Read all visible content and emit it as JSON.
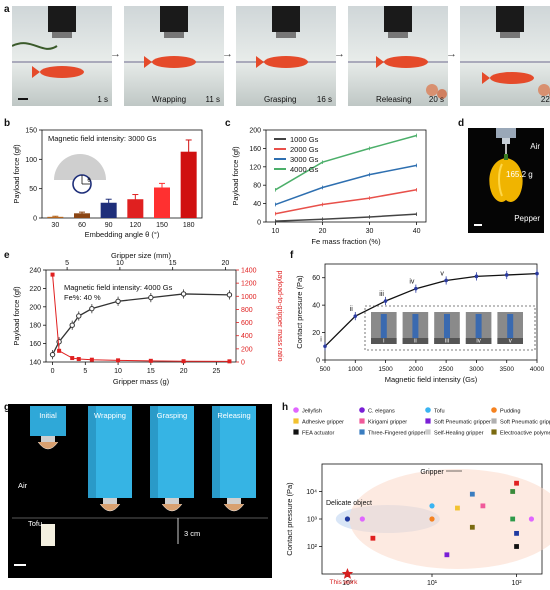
{
  "panels": {
    "a": "a",
    "b": "b",
    "c": "c",
    "d": "d",
    "e": "e",
    "f": "f",
    "g": "g",
    "h": "h"
  },
  "panel_a": {
    "frames": [
      {
        "time": "1 s",
        "label": ""
      },
      {
        "time": "11 s",
        "label": "Wrapping"
      },
      {
        "time": "16 s",
        "label": "Grasping"
      },
      {
        "time": "20 s",
        "label": "Releasing"
      },
      {
        "time": "22 s",
        "label": ""
      }
    ],
    "arrow": "→"
  },
  "panel_d": {
    "air": "Air",
    "mass": "165.2 g",
    "object": "Pepper"
  },
  "panel_g": {
    "labels": [
      "Initial",
      "Wrapping",
      "Grasping",
      "Releasing"
    ],
    "air": "Air",
    "tofu": "Tofu",
    "scale": "3 cm"
  },
  "chart_data": [
    {
      "panel": "b",
      "type": "bar",
      "annotation": "Magnetic field intensity: 3000 Gs",
      "theta_symbol": "θ",
      "xlabel": "Embedding angle θ (°)",
      "ylabel": "Payload force (gf)",
      "categories": [
        "30",
        "60",
        "90",
        "120",
        "150",
        "180"
      ],
      "values": [
        2,
        8,
        26,
        32,
        52,
        113
      ],
      "errors": [
        1,
        2,
        6,
        8,
        7,
        20
      ],
      "colors": [
        "#b5651d",
        "#8b4513",
        "#1f2f7a",
        "#e02020",
        "#ff3030",
        "#d01010"
      ],
      "ylim": [
        0,
        150
      ],
      "yticks": [
        0,
        50,
        100,
        150
      ]
    },
    {
      "panel": "c",
      "type": "line",
      "xlabel": "Fe mass fraction (%)",
      "ylabel": "Payload force (gf)",
      "x": [
        10,
        20,
        30,
        40
      ],
      "series": [
        {
          "name": "1000 Gs",
          "color": "#444444",
          "values": [
            2,
            6,
            11,
            17
          ]
        },
        {
          "name": "2000 Gs",
          "color": "#e8504a",
          "values": [
            18,
            38,
            52,
            70
          ]
        },
        {
          "name": "3000 Gs",
          "color": "#2e6fb0",
          "values": [
            38,
            75,
            103,
            123
          ]
        },
        {
          "name": "4000 Gs",
          "color": "#4caf6a",
          "values": [
            70,
            130,
            160,
            188
          ]
        }
      ],
      "xlim": [
        8,
        42
      ],
      "ylim": [
        0,
        200
      ],
      "xticks": [
        10,
        20,
        30,
        40
      ],
      "yticks": [
        0,
        40,
        80,
        120,
        160,
        200
      ]
    },
    {
      "panel": "e",
      "type": "line",
      "annotation_1": "Magnetic field intensity: 4000 Gs",
      "annotation_2": "Fe%: 40 %",
      "xlabel": "Gripper mass (g)",
      "x2label": "Gripper size (mm)",
      "ylabel": "Payload force (gf)",
      "y2label": "payload-to-gripper mass ratio",
      "x": [
        0,
        1,
        3,
        4,
        6,
        10,
        15,
        20,
        27
      ],
      "series": [
        {
          "name": "Payload force",
          "color": "#333333",
          "values": [
            148,
            162,
            180,
            190,
            198,
            206,
            210,
            214,
            213
          ]
        },
        {
          "name": "payload-to-gripper mass ratio",
          "color": "#e02020",
          "values": [
            1330,
            170,
            60,
            45,
            35,
            25,
            18,
            12,
            10
          ]
        }
      ],
      "xlim": [
        -1,
        28
      ],
      "xticks": [
        0,
        5,
        10,
        15,
        20,
        25
      ],
      "x2ticks": [
        5,
        10,
        15,
        20
      ],
      "ylim": [
        140,
        240
      ],
      "yticks": [
        140,
        160,
        180,
        200,
        220,
        240
      ],
      "y2lim": [
        0,
        1400
      ],
      "y2ticks": [
        0,
        200,
        400,
        600,
        800,
        1000,
        1200,
        1400
      ]
    },
    {
      "panel": "f",
      "type": "line",
      "xlabel": "Magnetic field intensity (Gs)",
      "ylabel": "Contact pressure (Pa)",
      "x": [
        500,
        1000,
        1500,
        2000,
        2500,
        3000,
        3500,
        4000
      ],
      "values": [
        10,
        32,
        43,
        52,
        58,
        61,
        62,
        63
      ],
      "roman": [
        "i",
        "ii",
        "iii",
        "iv",
        "v"
      ],
      "roman_x": [
        500,
        1000,
        1500,
        2000,
        2500
      ],
      "xlim": [
        500,
        4000
      ],
      "ylim": [
        0,
        70
      ],
      "xticks": [
        500,
        1000,
        1500,
        2000,
        2500,
        3000,
        3500,
        4000
      ],
      "yticks": [
        0,
        20,
        40,
        60
      ]
    },
    {
      "panel": "h",
      "type": "scatter",
      "xlabel": "Gripper size (mm)",
      "ylabel": "Contact pressure (Pa)",
      "legend": [
        {
          "name": "Jellyfish",
          "color": "#e066ff",
          "shape": "circle"
        },
        {
          "name": "C. elegans",
          "color": "#7a1fd6",
          "shape": "circle"
        },
        {
          "name": "Tofu",
          "color": "#3ab4f2",
          "shape": "circle"
        },
        {
          "name": "Pudding",
          "color": "#f58220",
          "shape": "circle"
        },
        {
          "name": "Adhesive gripper",
          "color": "#f2c230",
          "shape": "square"
        },
        {
          "name": "Kirigami gripper",
          "color": "#f05a9a",
          "shape": "square"
        },
        {
          "name": "Soft Pneumatic gripper 1",
          "color": "#7a1fd6",
          "shape": "square"
        },
        {
          "name": "Soft Pneumatic gripper 2",
          "color": "#b0b0b0",
          "shape": "square"
        },
        {
          "name": "FEA actuator",
          "color": "#111111",
          "shape": "square"
        },
        {
          "name": "Three-Fingered gripper",
          "color": "#3a7dc0",
          "shape": "square"
        },
        {
          "name": "Self-Healing gripper",
          "color": "#cccccc",
          "shape": "square"
        },
        {
          "name": "Electroactive polymer actuator",
          "color": "#7a6a10",
          "shape": "square"
        }
      ],
      "points": [
        {
          "x": 1.0,
          "y": 1000,
          "color": "#1f3aa0",
          "shape": "circle"
        },
        {
          "x": 1.0,
          "y": 10,
          "color": "#d61f1f",
          "shape": "star"
        },
        {
          "x": 1.5,
          "y": 1000,
          "color": "#e066ff",
          "shape": "circle"
        },
        {
          "x": 2,
          "y": 200,
          "color": "#e02020",
          "shape": "square"
        },
        {
          "x": 10,
          "y": 3000,
          "color": "#3ab4f2",
          "shape": "circle"
        },
        {
          "x": 10,
          "y": 1000,
          "color": "#f58220",
          "shape": "circle"
        },
        {
          "x": 20,
          "y": 2500,
          "color": "#f2c230",
          "shape": "square"
        },
        {
          "x": 30,
          "y": 8000,
          "color": "#3a7dc0",
          "shape": "square"
        },
        {
          "x": 30,
          "y": 500,
          "color": "#7a6a10",
          "shape": "square"
        },
        {
          "x": 15,
          "y": 50,
          "color": "#7a1fd6",
          "shape": "square"
        },
        {
          "x": 40,
          "y": 3000,
          "color": "#f05a9a",
          "shape": "square"
        },
        {
          "x": 90,
          "y": 10000,
          "color": "#3a8a3a",
          "shape": "square"
        },
        {
          "x": 90,
          "y": 1000,
          "color": "#2e9a4a",
          "shape": "square"
        },
        {
          "x": 100,
          "y": 300,
          "color": "#1f3aa0",
          "shape": "square"
        },
        {
          "x": 100,
          "y": 100,
          "color": "#111111",
          "shape": "square"
        },
        {
          "x": 100,
          "y": 20000,
          "color": "#e02020",
          "shape": "square"
        },
        {
          "x": 150,
          "y": 1000,
          "color": "#e066ff",
          "shape": "circle"
        }
      ],
      "annotations": {
        "gripper": "Gripper",
        "delicate": "Delicate object",
        "thiswork": "This work"
      },
      "xlim_log": [
        0.5,
        200
      ],
      "ylim_log": [
        10,
        100000
      ],
      "xticks": [
        "10⁰",
        "10¹",
        "10²"
      ],
      "yticks": [
        "10²",
        "10³",
        "10⁴"
      ]
    }
  ]
}
